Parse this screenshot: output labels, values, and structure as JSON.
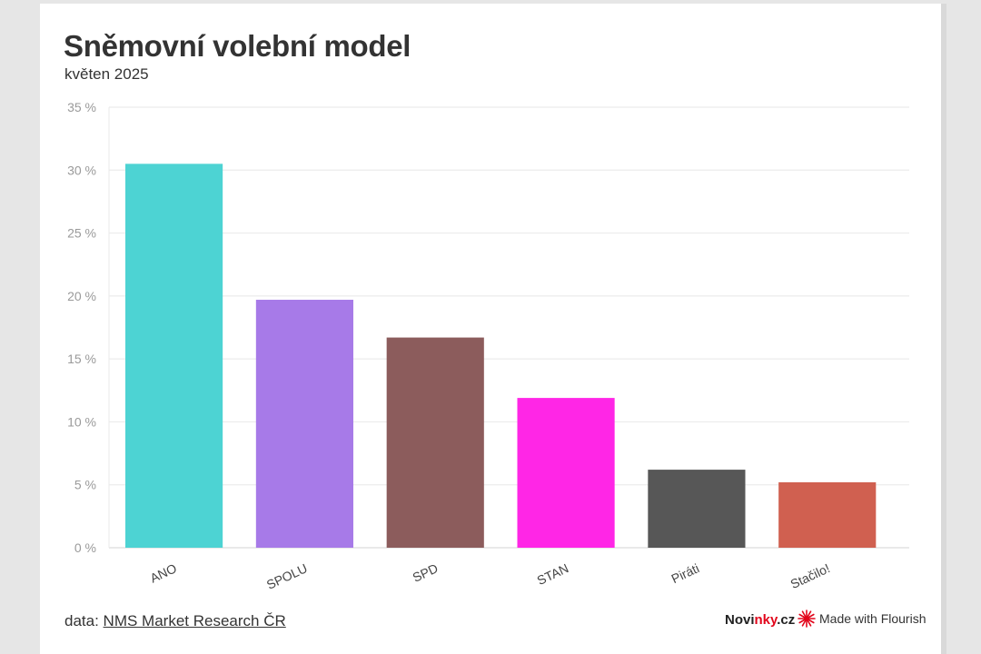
{
  "header": {
    "title": "Sněmovní volební model",
    "subtitle": "květen 2025"
  },
  "footer": {
    "source_prefix": "data: ",
    "source_link": "NMS Market Research ČR",
    "brand_a": "Novi",
    "brand_b": "nky",
    "brand_c": ".cz",
    "flourish_label": "Made with Flourish"
  },
  "colors": {
    "brand_accent": "#e2061b"
  },
  "chart_data": {
    "type": "bar",
    "categories": [
      "ANO",
      "SPOLU",
      "SPD",
      "STAN",
      "Piráti",
      "Stačilo!"
    ],
    "values": [
      30.5,
      19.7,
      16.7,
      11.9,
      6.2,
      5.2
    ],
    "colors": [
      "#4dd3d3",
      "#a77ae8",
      "#8c5c5c",
      "#ff26e6",
      "#575757",
      "#d06050"
    ],
    "title": "Sněmovní volební model",
    "subtitle": "květen 2025",
    "xlabel": "",
    "ylabel": "",
    "ylim": [
      0,
      35
    ],
    "yticks": [
      0,
      5,
      10,
      15,
      20,
      25,
      30,
      35
    ],
    "ytick_labels": [
      "0 %",
      "5 %",
      "10 %",
      "15 %",
      "20 %",
      "25 %",
      "30 %",
      "35 %"
    ],
    "grid": true,
    "legend": "none"
  }
}
